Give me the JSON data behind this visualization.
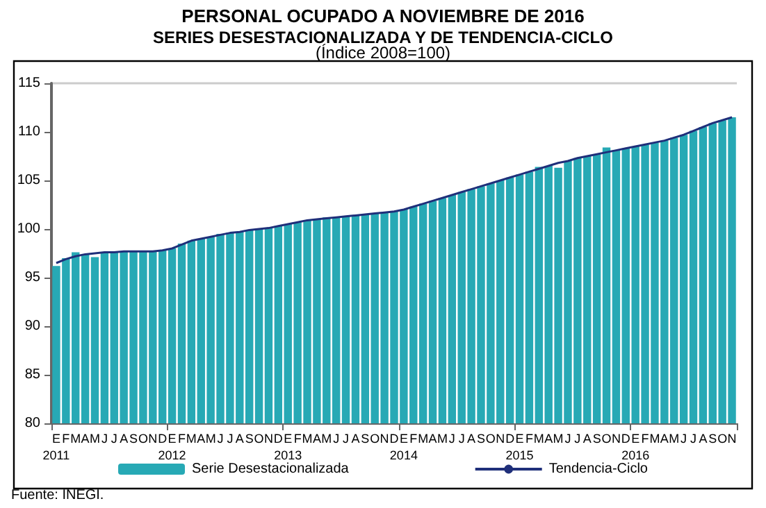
{
  "chart_data": {
    "type": "bar",
    "title": "PERSONAL OCUPADO A NOVIEMBRE DE 2016",
    "subtitle": "SERIES DESESTACIONALIZADA Y DE TENDENCIA-CICLO",
    "annotations": [
      "(Índice 2008=100)",
      "Fuente: INEGI."
    ],
    "categories": [
      "E\n2011",
      "F",
      "M",
      "A",
      "M",
      "J",
      "J",
      "A",
      "S",
      "O",
      "N",
      "D",
      "E\n2012",
      "F",
      "M",
      "A",
      "M",
      "J",
      "J",
      "A",
      "S",
      "O",
      "N",
      "D",
      "E\n2013",
      "F",
      "M",
      "A",
      "M",
      "J",
      "J",
      "A",
      "S",
      "O",
      "N",
      "D",
      "E\n2014",
      "F",
      "M",
      "A",
      "M",
      "J",
      "J",
      "A",
      "S",
      "O",
      "N",
      "D",
      "E\n2015",
      "F",
      "M",
      "A",
      "M",
      "J",
      "J",
      "A",
      "S",
      "O",
      "N",
      "D",
      "E\n2016",
      "F",
      "M",
      "A",
      "M",
      "J",
      "J",
      "A",
      "S",
      "O",
      "N"
    ],
    "series": [
      {
        "name": "Serie Desestacionalizada",
        "color": "#27a9b5",
        "values": [
          96.2,
          97.0,
          97.6,
          97.4,
          97.1,
          97.6,
          97.6,
          97.7,
          97.7,
          97.7,
          97.7,
          97.8,
          98.0,
          98.5,
          98.8,
          99.0,
          99.2,
          99.5,
          99.6,
          99.7,
          99.9,
          100.0,
          100.1,
          100.3,
          100.5,
          100.7,
          100.9,
          101.0,
          101.2,
          101.2,
          101.3,
          101.4,
          101.5,
          101.6,
          101.7,
          101.8,
          102.0,
          102.3,
          102.6,
          102.9,
          103.2,
          103.5,
          103.8,
          104.1,
          104.4,
          104.7,
          105.0,
          105.3,
          105.6,
          105.9,
          106.4,
          106.5,
          106.3,
          107.0,
          107.3,
          107.5,
          107.7,
          108.4,
          108.1,
          108.3,
          108.5,
          108.7,
          108.9,
          109.1,
          109.4,
          109.7,
          110.1,
          110.5,
          110.9,
          111.2,
          111.5
        ]
      },
      {
        "name": "Tendencia-Ciclo",
        "type": "line",
        "color": "#1f2f7a",
        "values": [
          96.5,
          96.9,
          97.2,
          97.4,
          97.5,
          97.6,
          97.6,
          97.7,
          97.7,
          97.7,
          97.7,
          97.8,
          98.0,
          98.4,
          98.8,
          99.0,
          99.2,
          99.4,
          99.6,
          99.7,
          99.9,
          100.0,
          100.1,
          100.3,
          100.5,
          100.7,
          100.9,
          101.0,
          101.1,
          101.2,
          101.3,
          101.4,
          101.5,
          101.6,
          101.7,
          101.8,
          102.0,
          102.3,
          102.6,
          102.9,
          103.2,
          103.5,
          103.8,
          104.1,
          104.4,
          104.7,
          105.0,
          105.3,
          105.6,
          105.9,
          106.2,
          106.5,
          106.8,
          107.0,
          107.3,
          107.5,
          107.7,
          107.9,
          108.1,
          108.3,
          108.5,
          108.7,
          108.9,
          109.1,
          109.4,
          109.7,
          110.1,
          110.5,
          110.9,
          111.2,
          111.5
        ]
      }
    ],
    "ylim": [
      80,
      115
    ],
    "yticks": [
      80,
      85,
      90,
      95,
      100,
      105,
      110,
      115
    ],
    "grid": false,
    "legend": "bottom",
    "marker": "none",
    "line_style": "solid"
  }
}
